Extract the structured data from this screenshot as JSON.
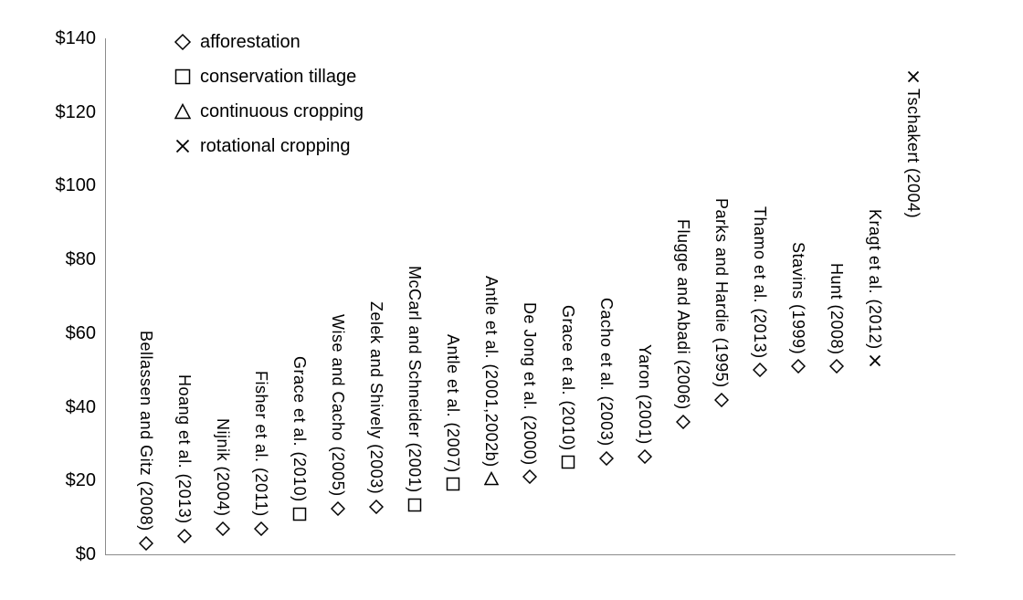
{
  "chart_data": {
    "type": "scatter",
    "title": "",
    "xlabel": "",
    "ylabel": "",
    "ylim": [
      0,
      140
    ],
    "grid": false,
    "legend_position": "top-left",
    "axis_color": "#8c8c8c",
    "marker_color": "#000000",
    "y_ticks": [
      0,
      20,
      40,
      60,
      80,
      100,
      120,
      140
    ],
    "y_tick_labels": [
      "$0",
      "$20",
      "$40",
      "$60",
      "$80",
      "$100",
      "$120",
      "$140"
    ],
    "legend": [
      {
        "marker": "diamond",
        "label": "afforestation"
      },
      {
        "marker": "square",
        "label": "conservation tillage"
      },
      {
        "marker": "triangle",
        "label": "continuous cropping"
      },
      {
        "marker": "x",
        "label": "rotational cropping"
      }
    ],
    "points": [
      {
        "study": "Bellassen and Gitz (2008)",
        "marker": "diamond",
        "value": 3
      },
      {
        "study": "Hoang et al. (2013)",
        "marker": "diamond",
        "value": 5
      },
      {
        "study": "Nijnik (2004)",
        "marker": "diamond",
        "value": 7
      },
      {
        "study": "Fisher et al. (2011)",
        "marker": "diamond",
        "value": 7
      },
      {
        "study": "Grace et al. (2010)",
        "marker": "square",
        "value": 11
      },
      {
        "study": "Wise and Cacho (2005)",
        "marker": "diamond",
        "value": 12.5
      },
      {
        "study": "Zelek and Shively (2003)",
        "marker": "diamond",
        "value": 13
      },
      {
        "study": "McCarl and Schneider (2001)",
        "marker": "square",
        "value": 13.5
      },
      {
        "study": "Antle et al. (2007)",
        "marker": "square",
        "value": 19
      },
      {
        "study": "Antle et al. (2001,2002b)",
        "marker": "triangle",
        "value": 20.5
      },
      {
        "study": "De Jong et al. (2000)",
        "marker": "diamond",
        "value": 21
      },
      {
        "study": "Grace et al. (2010)",
        "marker": "square",
        "value": 25
      },
      {
        "study": "Cacho et al. (2003)",
        "marker": "diamond",
        "value": 26
      },
      {
        "study": "Yaron (2001)",
        "marker": "diamond",
        "value": 26.5
      },
      {
        "study": "Flugge and Abadi (2006)",
        "marker": "diamond",
        "value": 36
      },
      {
        "study": "Parks and Hardie (1995)",
        "marker": "diamond",
        "value": 42
      },
      {
        "study": "Thamo et al. (2013)",
        "marker": "diamond",
        "value": 50
      },
      {
        "study": "Stavins (1999)",
        "marker": "diamond",
        "value": 51
      },
      {
        "study": "Hunt (2008)",
        "marker": "diamond",
        "value": 51
      },
      {
        "study": "Kragt et al. (2012)",
        "marker": "x",
        "value": 52.5
      },
      {
        "study": "Tschakert (2004)",
        "marker": "x",
        "value": 129.5,
        "label_below": true
      }
    ]
  }
}
